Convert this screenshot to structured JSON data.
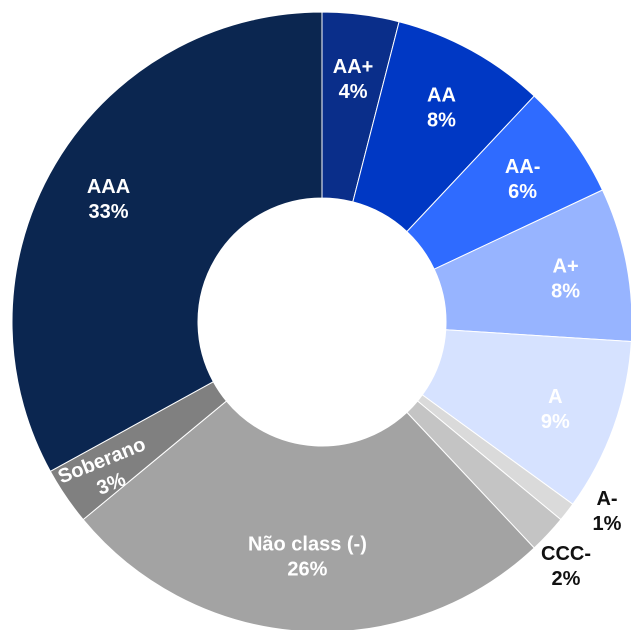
{
  "chart_data": {
    "type": "pie",
    "donut": true,
    "categories": [
      "AA+",
      "AA",
      "AA-",
      "A+",
      "A",
      "A-",
      "CCC-",
      "Não class (-)",
      "Soberano",
      "AAA"
    ],
    "values": [
      4,
      8,
      6,
      8,
      9,
      1,
      2,
      26,
      3,
      33
    ],
    "value_labels": [
      "4%",
      "8%",
      "6%",
      "8%",
      "9%",
      "1%",
      "2%",
      "26%",
      "3%",
      "33%"
    ],
    "colors": [
      "#0A2E8A",
      "#0038C4",
      "#2F6BFF",
      "#97B4FF",
      "#D6E2FF",
      "#DADADA",
      "#C4C4C4",
      "#A3A3A3",
      "#808080",
      "#0B2650"
    ],
    "label_colors": [
      "#ffffff",
      "#ffffff",
      "#ffffff",
      "#ffffff",
      "#ffffff",
      "#111111",
      "#111111",
      "#ffffff",
      "#ffffff",
      "#ffffff"
    ],
    "title": "",
    "legend": "none"
  }
}
